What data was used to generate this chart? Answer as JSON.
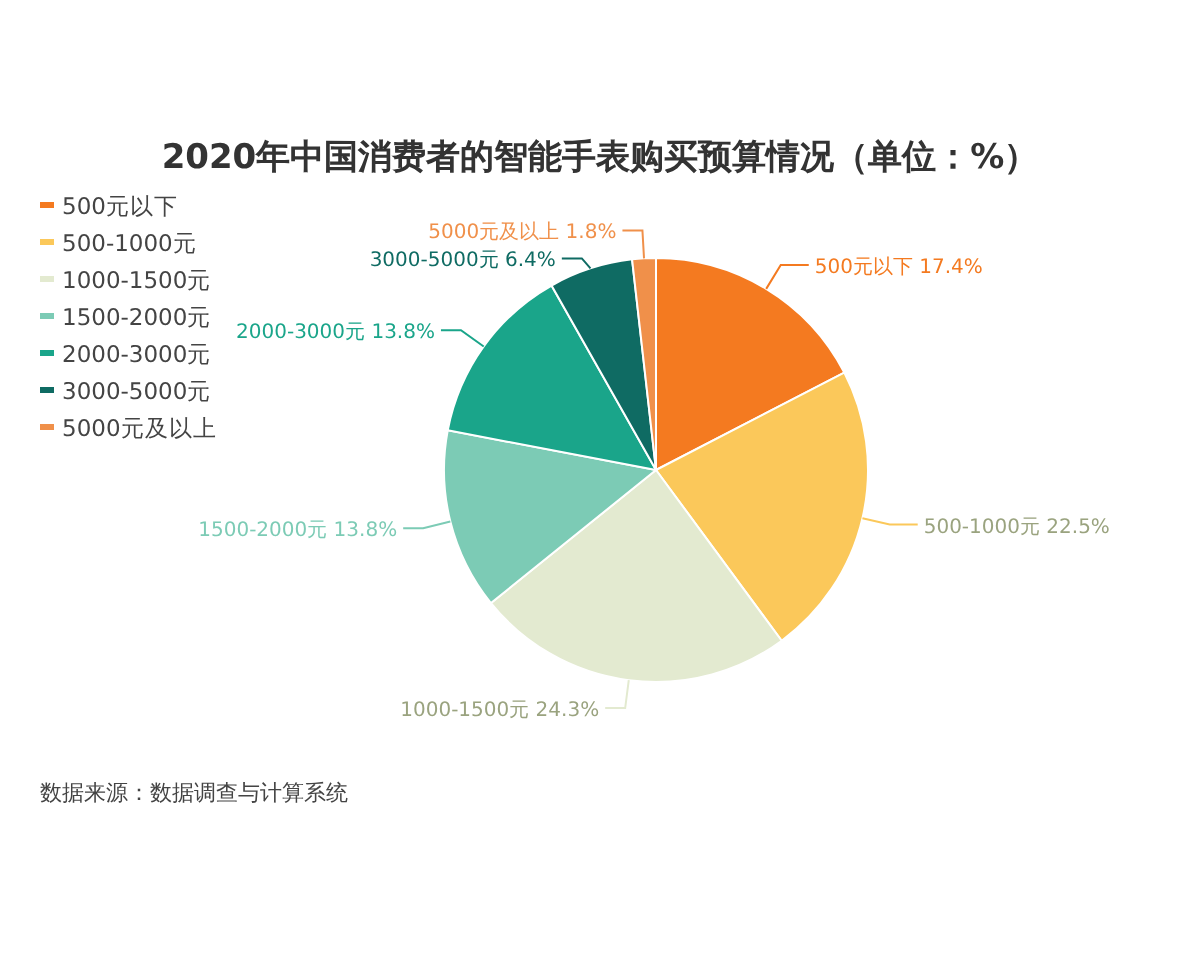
{
  "chart_data": {
    "type": "pie",
    "title": "2020年中国消费者的智能手表购买预算情况（单位：%）",
    "categories": [
      "500元以下",
      "500-1000元",
      "1000-1500元",
      "1500-2000元",
      "2000-3000元",
      "3000-5000元",
      "5000元及以上"
    ],
    "values": [
      17.4,
      22.5,
      24.3,
      13.8,
      13.8,
      6.4,
      1.8
    ],
    "value_labels": [
      "17.4%",
      "22.5%",
      "24.3%",
      "13.8%",
      "13.8%",
      "6.4%",
      "1.8%"
    ],
    "colors": [
      "#f47a20",
      "#fbc85a",
      "#e3ead0",
      "#7ccbb5",
      "#1aa58a",
      "#0f6b63",
      "#f0904a"
    ],
    "legend": "top left",
    "annotations": [
      "数据来源：数据调查与计算系统"
    ]
  }
}
